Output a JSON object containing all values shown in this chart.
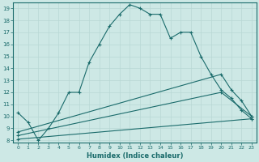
{
  "xlabel": "Humidex (Indice chaleur)",
  "bg_color": "#cde8e5",
  "line_color": "#1a6b6b",
  "grid_color": "#b8d8d4",
  "xlim": [
    -0.5,
    23.5
  ],
  "ylim": [
    7.8,
    19.5
  ],
  "yticks": [
    8,
    9,
    10,
    11,
    12,
    13,
    14,
    15,
    16,
    17,
    18,
    19
  ],
  "xticks": [
    0,
    1,
    2,
    3,
    4,
    5,
    6,
    7,
    8,
    9,
    10,
    11,
    12,
    13,
    14,
    15,
    16,
    17,
    18,
    19,
    20,
    21,
    22,
    23
  ],
  "curve1_x": [
    0,
    1,
    2,
    3,
    4,
    5,
    6,
    7,
    8,
    9,
    10,
    11,
    12,
    13,
    14,
    15,
    16,
    17,
    18,
    19,
    20,
    21,
    22,
    23
  ],
  "curve1_y": [
    10.3,
    9.5,
    8.0,
    9.0,
    10.3,
    12.0,
    12.0,
    14.5,
    16.0,
    17.5,
    18.5,
    19.3,
    19.0,
    18.5,
    18.5,
    16.5,
    17.0,
    17.0,
    15.0,
    13.5,
    12.2,
    11.5,
    10.5,
    9.8
  ],
  "curve2_x": [
    0,
    20,
    21,
    22,
    23
  ],
  "curve2_y": [
    8.7,
    13.5,
    12.2,
    11.3,
    10.0
  ],
  "curve3_x": [
    0,
    20,
    23
  ],
  "curve3_y": [
    8.4,
    12.0,
    10.0
  ],
  "curve4_x": [
    0,
    23
  ],
  "curve4_y": [
    8.1,
    9.8
  ]
}
